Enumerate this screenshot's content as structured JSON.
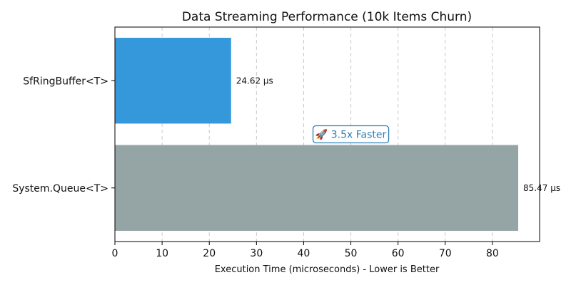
{
  "chart_data": {
    "type": "bar",
    "orientation": "horizontal",
    "title": "Data Streaming Performance (10k Items Churn)",
    "xlabel": "Execution Time (microseconds) - Lower is Better",
    "ylabel": "",
    "categories": [
      "SfRingBuffer<T>",
      "System.Queue<T>"
    ],
    "values": [
      24.62,
      85.47
    ],
    "value_labels": [
      "24.62 μs",
      "85.47 μs"
    ],
    "colors": [
      "#3498db",
      "#95a5a6"
    ],
    "xlim": [
      0,
      90
    ],
    "xticks": [
      0,
      10,
      20,
      30,
      40,
      50,
      60,
      70,
      80
    ],
    "grid": "x-dashed",
    "annotation": {
      "text": "🚀 3.5x Faster",
      "x": 50,
      "color": "#2e7fb5"
    }
  }
}
